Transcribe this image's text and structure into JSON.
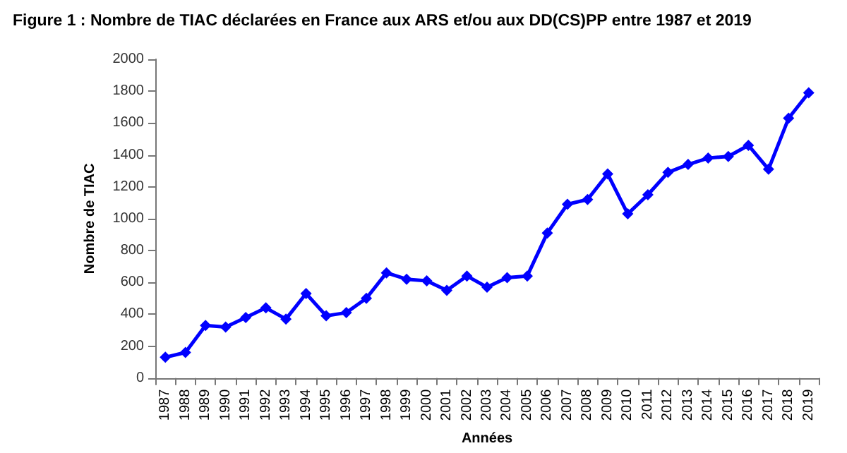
{
  "chart_data": {
    "type": "line",
    "title": "Figure 1 : Nombre de TIAC déclarées en France aux ARS et/ou aux DD(CS)PP entre 1987 et 2019",
    "xlabel": "Années",
    "ylabel": "Nombre de TIAC",
    "categories": [
      "1987",
      "1988",
      "1989",
      "1990",
      "1991",
      "1992",
      "1993",
      "1994",
      "1995",
      "1996",
      "1997",
      "1998",
      "1999",
      "2000",
      "2001",
      "2002",
      "2003",
      "2004",
      "2005",
      "2006",
      "2007",
      "2008",
      "2009",
      "2010",
      "2011",
      "2012",
      "2013",
      "2014",
      "2015",
      "2016",
      "2017",
      "2018",
      "2019"
    ],
    "values": [
      130,
      160,
      330,
      320,
      380,
      440,
      370,
      530,
      390,
      410,
      500,
      660,
      620,
      610,
      550,
      640,
      570,
      630,
      640,
      910,
      1090,
      1120,
      1280,
      1030,
      1150,
      1290,
      1340,
      1380,
      1390,
      1460,
      1310,
      1630,
      1790
    ],
    "color": "#0000ff",
    "ylim": [
      0,
      2000
    ],
    "yticks": [
      0,
      200,
      400,
      600,
      800,
      1000,
      1200,
      1400,
      1600,
      1800,
      2000
    ],
    "grid": false,
    "marker": "diamond",
    "line_style": "solid"
  }
}
